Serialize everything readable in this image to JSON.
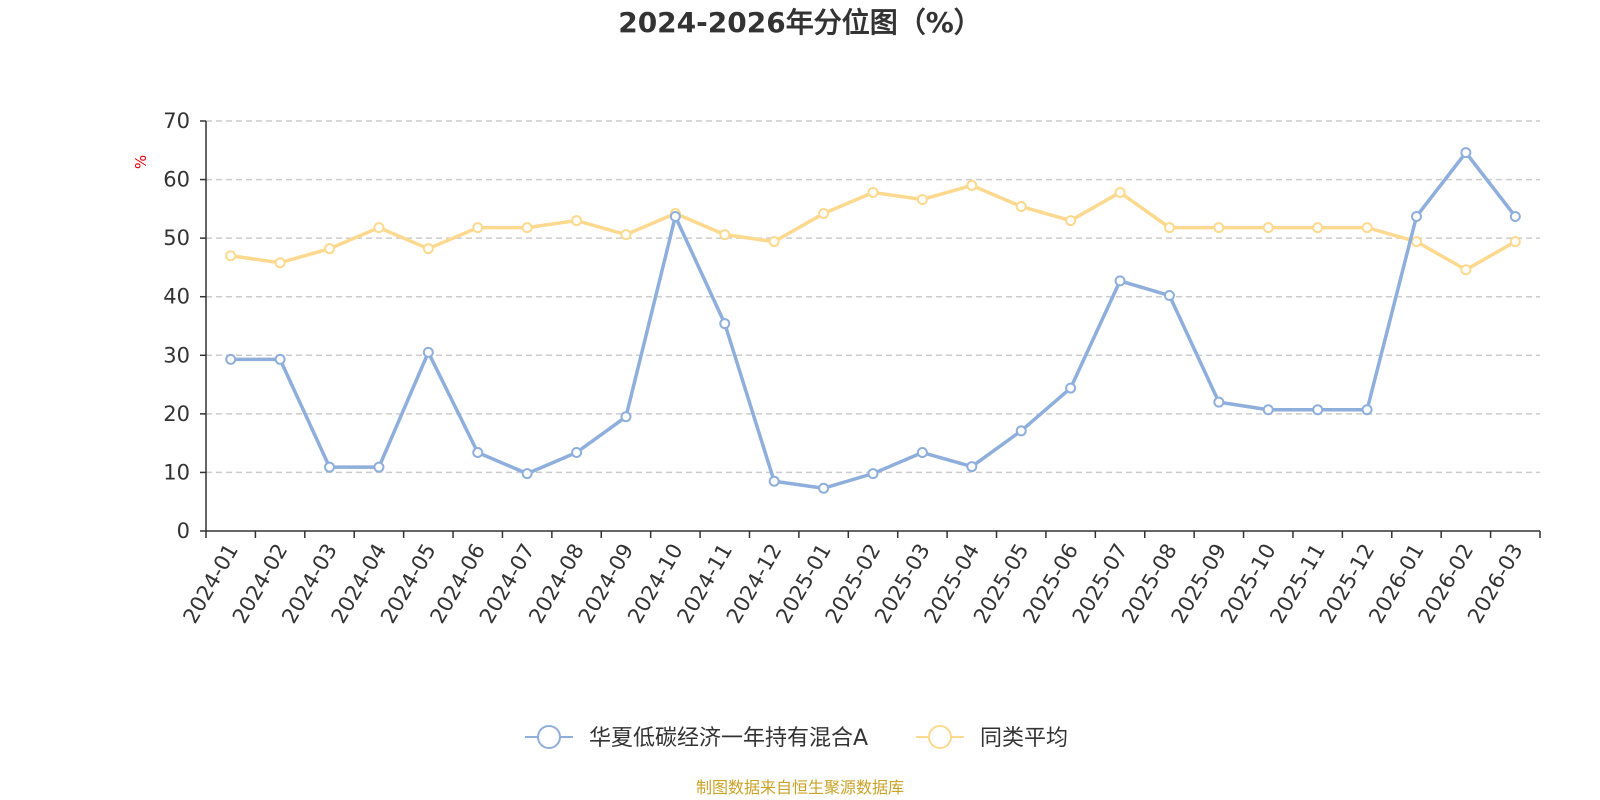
{
  "chart_data": {
    "type": "line",
    "title": "2024-2026年分位图（%）",
    "ylabel": "%",
    "ylim": [
      0,
      70
    ],
    "yticks": [
      0,
      10,
      20,
      30,
      40,
      50,
      60,
      70
    ],
    "grid": true,
    "legend_position": "bottom",
    "categories": [
      "2024-01",
      "2024-02",
      "2024-03",
      "2024-04",
      "2024-05",
      "2024-06",
      "2024-07",
      "2024-08",
      "2024-09",
      "2024-10",
      "2024-11",
      "2024-12",
      "2025-01",
      "2025-02",
      "2025-03",
      "2025-04",
      "2025-05",
      "2025-06",
      "2025-07",
      "2025-08",
      "2025-09",
      "2025-10",
      "2025-11",
      "2025-12",
      "2026-01",
      "2026-02",
      "2026-03"
    ],
    "series": [
      {
        "name": "华夏低碳经济一年持有混合A",
        "color": "#8eaedb",
        "values": [
          29.3,
          29.3,
          10.9,
          10.9,
          30.5,
          13.4,
          9.8,
          13.4,
          19.5,
          53.7,
          35.4,
          8.5,
          7.3,
          9.8,
          13.4,
          11.0,
          17.1,
          24.4,
          42.7,
          40.2,
          22.0,
          20.7,
          20.7,
          20.7,
          53.7,
          64.6,
          53.7
        ]
      },
      {
        "name": "同类平均",
        "color": "#fcd98e",
        "values": [
          47.0,
          45.8,
          48.2,
          51.8,
          48.2,
          51.8,
          51.8,
          53.0,
          50.6,
          54.2,
          50.6,
          49.4,
          54.2,
          57.8,
          56.6,
          59.0,
          55.4,
          53.0,
          57.8,
          51.8,
          51.8,
          51.8,
          51.8,
          51.8,
          49.4,
          44.6,
          49.4
        ]
      }
    ]
  },
  "footer": {
    "source": "制图数据来自恒生聚源数据库"
  }
}
